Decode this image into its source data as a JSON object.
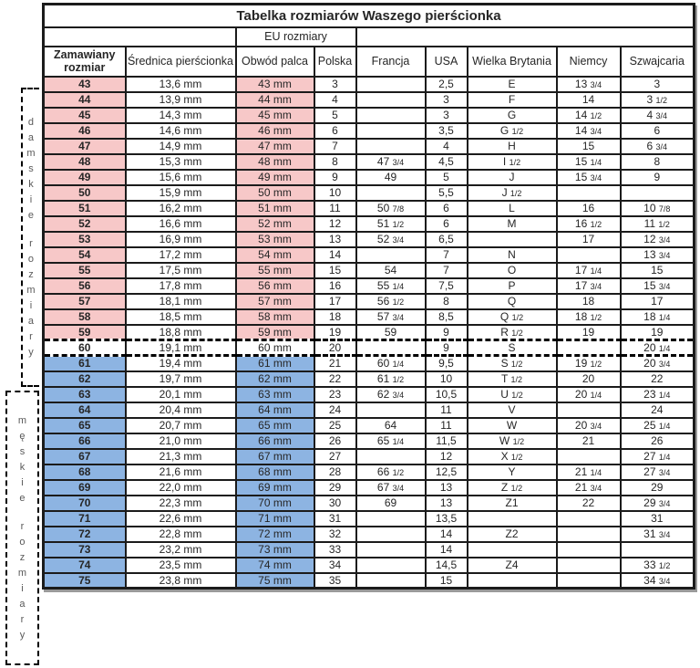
{
  "title": "Tabelka rozmiarów Waszego pierścionka",
  "header": {
    "eu_group_label": "EU rozmiary",
    "columns": [
      "Zamawiany rozmiar",
      "Średnica pierścionka",
      "Obwód palca",
      "Polska",
      "Francja",
      "USA",
      "Wielka Brytania",
      "Niemcy",
      "Szwajcaria"
    ]
  },
  "side_labels": {
    "women": "damskie rozmiary",
    "men": "męskie rozmiary"
  },
  "colors": {
    "women_fill": "#f7c8c8",
    "men_fill": "#8db4e2",
    "border": "#1b1b1b",
    "text": "#262626",
    "side_label_text": "#595959"
  },
  "rows": [
    {
      "group": "women",
      "cells": [
        "43",
        "13,6 mm",
        "43 mm",
        "3",
        "",
        "2,5",
        "E",
        "13 3/4",
        "3"
      ]
    },
    {
      "group": "women",
      "cells": [
        "44",
        "13,9 mm",
        "44 mm",
        "4",
        "",
        "3",
        "F",
        "14",
        "3 1/2"
      ]
    },
    {
      "group": "women",
      "cells": [
        "45",
        "14,3 mm",
        "45 mm",
        "5",
        "",
        "3",
        "G",
        "14 1/2",
        "4 3/4"
      ]
    },
    {
      "group": "women",
      "cells": [
        "46",
        "14,6 mm",
        "46 mm",
        "6",
        "",
        "3,5",
        "G 1/2",
        "14 3/4",
        "6"
      ]
    },
    {
      "group": "women",
      "cells": [
        "47",
        "14,9 mm",
        "47 mm",
        "7",
        "",
        "4",
        "H",
        "15",
        "6 3/4"
      ]
    },
    {
      "group": "women",
      "cells": [
        "48",
        "15,3 mm",
        "48 mm",
        "8",
        "47 3/4",
        "4,5",
        "I 1/2",
        "15 1/4",
        "8"
      ]
    },
    {
      "group": "women",
      "cells": [
        "49",
        "15,6 mm",
        "49 mm",
        "9",
        "49",
        "5",
        "J",
        "15 3/4",
        "9"
      ]
    },
    {
      "group": "women",
      "cells": [
        "50",
        "15,9 mm",
        "50 mm",
        "10",
        "",
        "5,5",
        "J 1/2",
        "",
        ""
      ]
    },
    {
      "group": "women",
      "cells": [
        "51",
        "16,2 mm",
        "51 mm",
        "11",
        "50 7/8",
        "6",
        "L",
        "16",
        "10 7/8"
      ]
    },
    {
      "group": "women",
      "cells": [
        "52",
        "16,6 mm",
        "52 mm",
        "12",
        "51 1/2",
        "6",
        "M",
        "16 1/2",
        "11 1/2"
      ]
    },
    {
      "group": "women",
      "cells": [
        "53",
        "16,9 mm",
        "53 mm",
        "13",
        "52 3/4",
        "6,5",
        "",
        "17",
        "12 3/4"
      ]
    },
    {
      "group": "women",
      "cells": [
        "54",
        "17,2 mm",
        "54 mm",
        "14",
        "",
        "7",
        "N",
        "",
        "13 3/4"
      ]
    },
    {
      "group": "women",
      "cells": [
        "55",
        "17,5 mm",
        "55 mm",
        "15",
        "54",
        "7",
        "O",
        "17 1/4",
        "15"
      ]
    },
    {
      "group": "women",
      "cells": [
        "56",
        "17,8 mm",
        "56 mm",
        "16",
        "55 1/4",
        "7,5",
        "P",
        "17 3/4",
        "15 3/4"
      ]
    },
    {
      "group": "women",
      "cells": [
        "57",
        "18,1 mm",
        "57 mm",
        "17",
        "56 1/2",
        "8",
        "Q",
        "18",
        "17"
      ]
    },
    {
      "group": "women",
      "cells": [
        "58",
        "18,5 mm",
        "58 mm",
        "18",
        "57 3/4",
        "8,5",
        "Q 1/2",
        "18 1/2",
        "18 1/4"
      ]
    },
    {
      "group": "women",
      "cells": [
        "59",
        "18,8 mm",
        "59 mm",
        "19",
        "59",
        "9",
        "R 1/2",
        "19",
        "19"
      ]
    },
    {
      "group": "neutral",
      "cells": [
        "60",
        "19,1 mm",
        "60 mm",
        "20",
        "",
        "9",
        "S",
        "",
        "20 1/4"
      ]
    },
    {
      "group": "men",
      "cells": [
        "61",
        "19,4 mm",
        "61 mm",
        "21",
        "60 1/4",
        "9,5",
        "S 1/2",
        "19 1/2",
        "20 3/4"
      ]
    },
    {
      "group": "men",
      "cells": [
        "62",
        "19,7 mm",
        "62 mm",
        "22",
        "61 1/2",
        "10",
        "T 1/2",
        "20",
        "22"
      ]
    },
    {
      "group": "men",
      "cells": [
        "63",
        "20,1 mm",
        "63 mm",
        "23",
        "62 3/4",
        "10,5",
        "U 1/2",
        "20 1/4",
        "23 1/4"
      ]
    },
    {
      "group": "men",
      "cells": [
        "64",
        "20,4 mm",
        "64 mm",
        "24",
        "",
        "11",
        "V",
        "",
        "24"
      ]
    },
    {
      "group": "men",
      "cells": [
        "65",
        "20,7 mm",
        "65 mm",
        "25",
        "64",
        "11",
        "W",
        "20 3/4",
        "25 1/4"
      ]
    },
    {
      "group": "men",
      "cells": [
        "66",
        "21,0 mm",
        "66 mm",
        "26",
        "65 1/4",
        "11,5",
        "W 1/2",
        "21",
        "26"
      ]
    },
    {
      "group": "men",
      "cells": [
        "67",
        "21,3 mm",
        "67 mm",
        "27",
        "",
        "12",
        "X 1/2",
        "",
        "27 1/4"
      ]
    },
    {
      "group": "men",
      "cells": [
        "68",
        "21,6 mm",
        "68 mm",
        "28",
        "66 1/2",
        "12,5",
        "Y",
        "21 1/4",
        "27 3/4"
      ]
    },
    {
      "group": "men",
      "cells": [
        "69",
        "22,0 mm",
        "69 mm",
        "29",
        "67 3/4",
        "13",
        "Z 1/2",
        "21 3/4",
        "29"
      ]
    },
    {
      "group": "men",
      "cells": [
        "70",
        "22,3 mm",
        "70 mm",
        "30",
        "69",
        "13",
        "Z1",
        "22",
        "29 3/4"
      ]
    },
    {
      "group": "men",
      "cells": [
        "71",
        "22,6 mm",
        "71 mm",
        "31",
        "",
        "13,5",
        "",
        "",
        "31"
      ]
    },
    {
      "group": "men",
      "cells": [
        "72",
        "22,8 mm",
        "72 mm",
        "32",
        "",
        "14",
        "Z2",
        "",
        "31 3/4"
      ]
    },
    {
      "group": "men",
      "cells": [
        "73",
        "23,2 mm",
        "73 mm",
        "33",
        "",
        "14",
        "",
        "",
        ""
      ]
    },
    {
      "group": "men",
      "cells": [
        "74",
        "23,5 mm",
        "74 mm",
        "34",
        "",
        "14,5",
        "Z4",
        "",
        "33 1/2"
      ]
    },
    {
      "group": "men",
      "cells": [
        "75",
        "23,8 mm",
        "75 mm",
        "35",
        "",
        "15",
        "",
        "",
        "34 3/4"
      ]
    }
  ]
}
